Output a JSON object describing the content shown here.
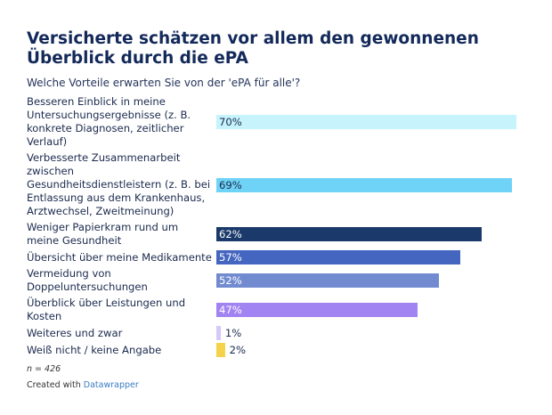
{
  "title": "Versicherte schätzen vor allem den gewonnenen Überblick durch die ePA",
  "subtitle": "Welche Vorteile erwarten Sie von der 'ePA für alle'?",
  "note": "n = 426",
  "credit_prefix": "Created with ",
  "credit_link": "Datawrapper",
  "chart_data": {
    "type": "bar",
    "orientation": "horizontal",
    "xlim": [
      0,
      70
    ],
    "grid": false,
    "value_suffix": "%",
    "categories": [
      "Besseren Einblick in meine Untersuchungsergebnisse (z. B. konkrete Diagnosen, zeitlicher Verlauf)",
      "Verbesserte Zusammenarbeit zwischen Gesundheitsdienstleistern (z. B. bei Entlassung aus dem Krankenhaus, Arztwechsel, Zweitmeinung)",
      "Weniger Papierkram rund um meine Gesundheit",
      "Übersicht über meine Medikamente",
      "Vermeidung von Doppeluntersuchungen",
      "Überblick über Leistungen und Kosten",
      "Weiteres und zwar",
      "Weiß nicht / keine Angabe"
    ],
    "values": [
      70,
      69,
      62,
      57,
      52,
      47,
      1,
      2
    ],
    "labels": [
      "70%",
      "69%",
      "62%",
      "57%",
      "52%",
      "47%",
      "1%",
      "2%"
    ],
    "colors": [
      "#c6f3fc",
      "#6fd3f7",
      "#1b3a6b",
      "#4566c0",
      "#728bd0",
      "#a283f2",
      "#d6c9f7",
      "#f6d24a"
    ],
    "label_colors": [
      "#1b2a4e",
      "#1b2a4e",
      "#ffffff",
      "#ffffff",
      "#ffffff",
      "#ffffff",
      "#1b2a4e",
      "#1b2a4e"
    ]
  }
}
